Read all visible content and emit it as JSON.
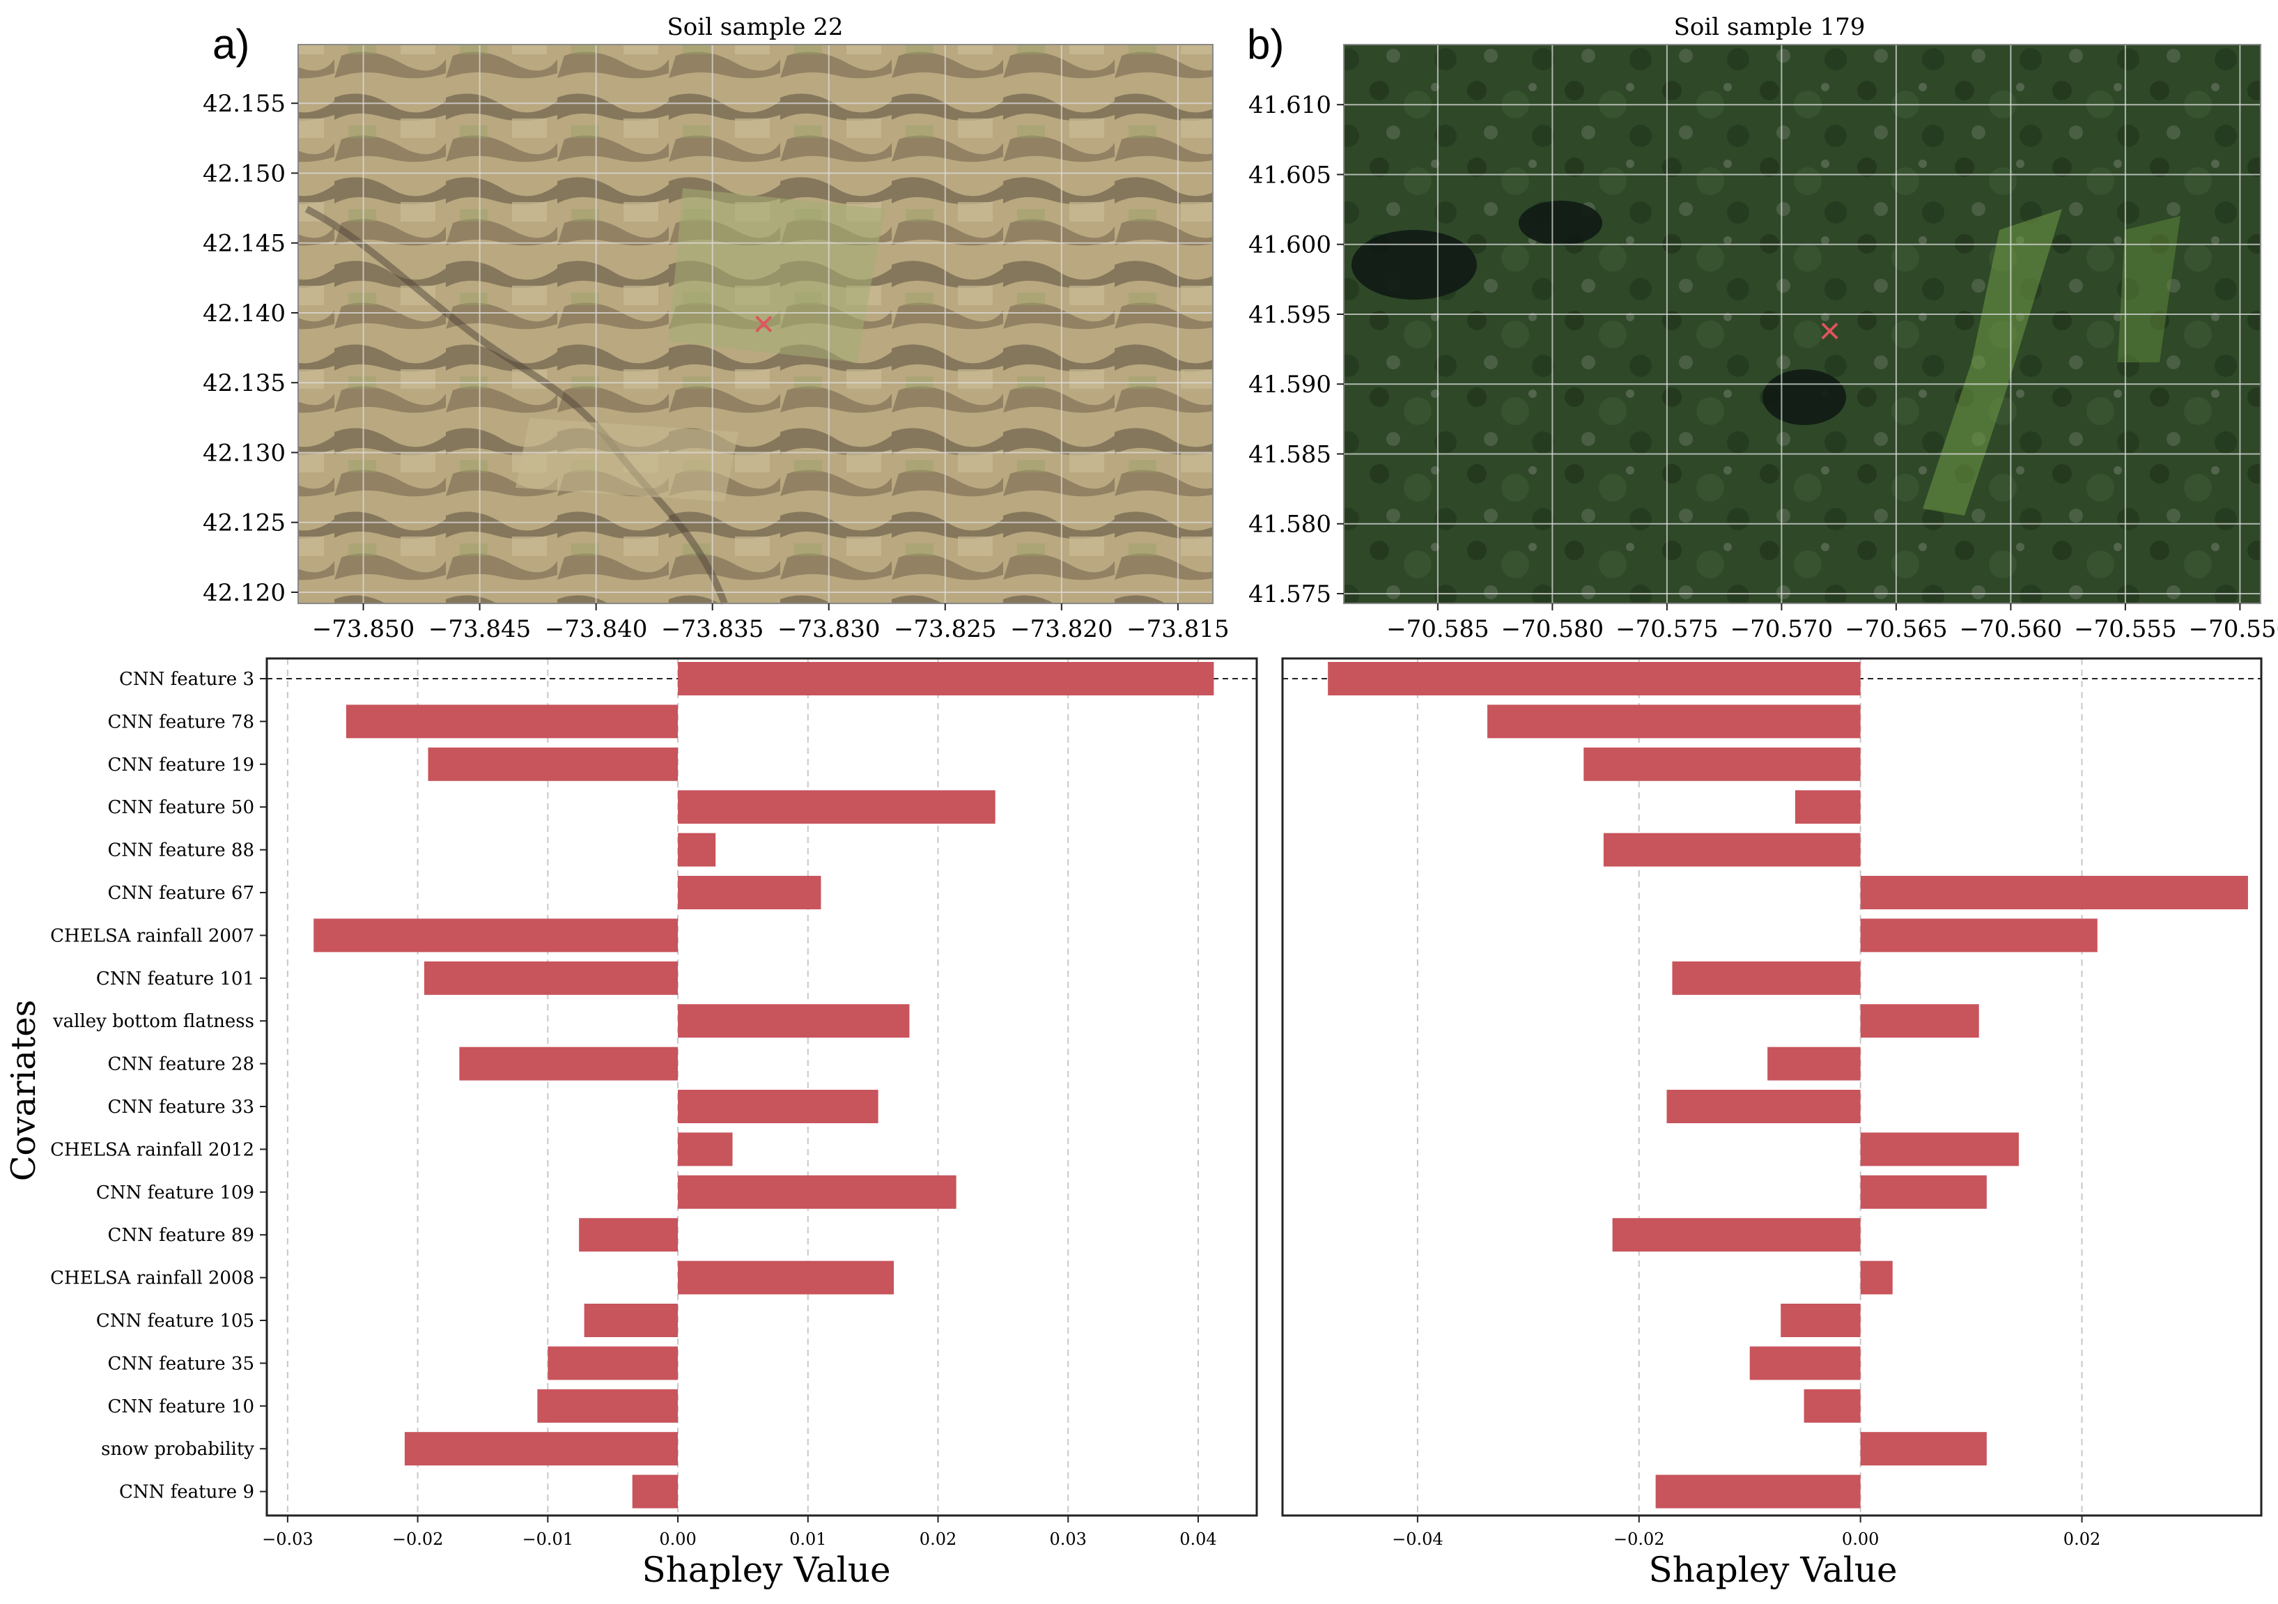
{
  "colors": {
    "bar": "#c8545c",
    "marker": "#e0545c",
    "gridline": "#c8c8c8",
    "map_a_base": "#b8a77f",
    "map_b_base": "#2f4a2a",
    "axis": "#222222"
  },
  "labels": {
    "y_axis": "Covariates",
    "x_axis": "Shapley Value"
  },
  "chart_data": [
    {
      "type": "map",
      "panel": "a)",
      "title": "Soil sample 22",
      "xlim": [
        -73.8528,
        -73.8135
      ],
      "ylim": [
        42.1192,
        42.1592
      ],
      "xticks": [
        -73.85,
        -73.845,
        -73.84,
        -73.835,
        -73.83,
        -73.825,
        -73.82,
        -73.815
      ],
      "xtick_labels": [
        "−73.850",
        "−73.845",
        "−73.840",
        "−73.835",
        "−73.830",
        "−73.825",
        "−73.820",
        "−73.815"
      ],
      "yticks": [
        42.155,
        42.15,
        42.145,
        42.14,
        42.135,
        42.13,
        42.125,
        42.12
      ],
      "ytick_labels": [
        "42.155",
        "42.150",
        "42.145",
        "42.140",
        "42.135",
        "42.130",
        "42.125",
        "42.120"
      ],
      "marker": {
        "x": -73.8328,
        "y": 42.1392,
        "symbol": "×"
      }
    },
    {
      "type": "map",
      "panel": "b)",
      "title": "Soil sample 179",
      "xlim": [
        -70.5891,
        -70.5491
      ],
      "ylim": [
        41.5743,
        41.6143
      ],
      "xticks": [
        -70.585,
        -70.58,
        -70.575,
        -70.57,
        -70.565,
        -70.56,
        -70.555,
        -70.55
      ],
      "xtick_labels": [
        "−70.585",
        "−70.580",
        "−70.575",
        "−70.570",
        "−70.565",
        "−70.560",
        "−70.555",
        "−70.550"
      ],
      "yticks": [
        41.61,
        41.605,
        41.6,
        41.595,
        41.59,
        41.585,
        41.58,
        41.575
      ],
      "ytick_labels": [
        "41.610",
        "41.605",
        "41.600",
        "41.595",
        "41.590",
        "41.585",
        "41.580",
        "41.575"
      ],
      "marker": {
        "x": -70.5679,
        "y": 41.5938,
        "symbol": "×"
      }
    },
    {
      "type": "bar",
      "orientation": "horizontal",
      "xlabel": "Shapley Value",
      "ylabel": "Covariates",
      "xlim": [
        -0.0316,
        0.0445
      ],
      "xticks": [
        -0.03,
        -0.02,
        -0.01,
        0.0,
        0.01,
        0.02,
        0.03,
        0.04
      ],
      "xtick_labels": [
        "−0.03",
        "−0.02",
        "−0.01",
        "0.00",
        "0.01",
        "0.02",
        "0.03",
        "0.04"
      ],
      "grid": "vertical dashed",
      "reference_line": "dashed horizontal line at first covariate",
      "categories": [
        "CNN feature 3",
        "CNN feature 78",
        "CNN feature 19",
        "CNN feature 50",
        "CNN feature 88",
        "CNN feature 67",
        "CHELSA rainfall 2007",
        "CNN feature 101",
        "valley bottom flatness",
        "CNN feature 28",
        "CNN feature 33",
        "CHELSA rainfall 2012",
        "CNN feature 109",
        "CNN feature 89",
        "CHELSA rainfall 2008",
        "CNN feature 105",
        "CNN feature 35",
        "CNN feature 10",
        "snow probability",
        "CNN feature 9"
      ],
      "values": [
        0.0412,
        -0.0255,
        -0.0192,
        0.0244,
        0.0029,
        0.011,
        -0.028,
        -0.0195,
        0.0178,
        -0.0168,
        0.0154,
        0.0042,
        0.0214,
        -0.0076,
        0.0166,
        -0.0072,
        -0.01,
        -0.0108,
        -0.021,
        -0.0035
      ]
    },
    {
      "type": "bar",
      "orientation": "horizontal",
      "xlabel": "Shapley Value",
      "xlim": [
        -0.0522,
        0.0362
      ],
      "xticks": [
        -0.04,
        -0.02,
        0.0,
        0.02
      ],
      "xtick_labels": [
        "−0.04",
        "−0.02",
        "0.00",
        "0.02"
      ],
      "grid": "vertical dashed",
      "reference_line": "dashed horizontal line at first covariate",
      "values": [
        -0.0481,
        -0.0337,
        -0.025,
        -0.0059,
        -0.0232,
        0.035,
        0.0214,
        -0.017,
        0.0107,
        -0.0084,
        -0.0175,
        0.0143,
        0.0114,
        -0.0224,
        0.0029,
        -0.0072,
        -0.01,
        -0.0051,
        0.0114,
        -0.0185
      ]
    }
  ]
}
